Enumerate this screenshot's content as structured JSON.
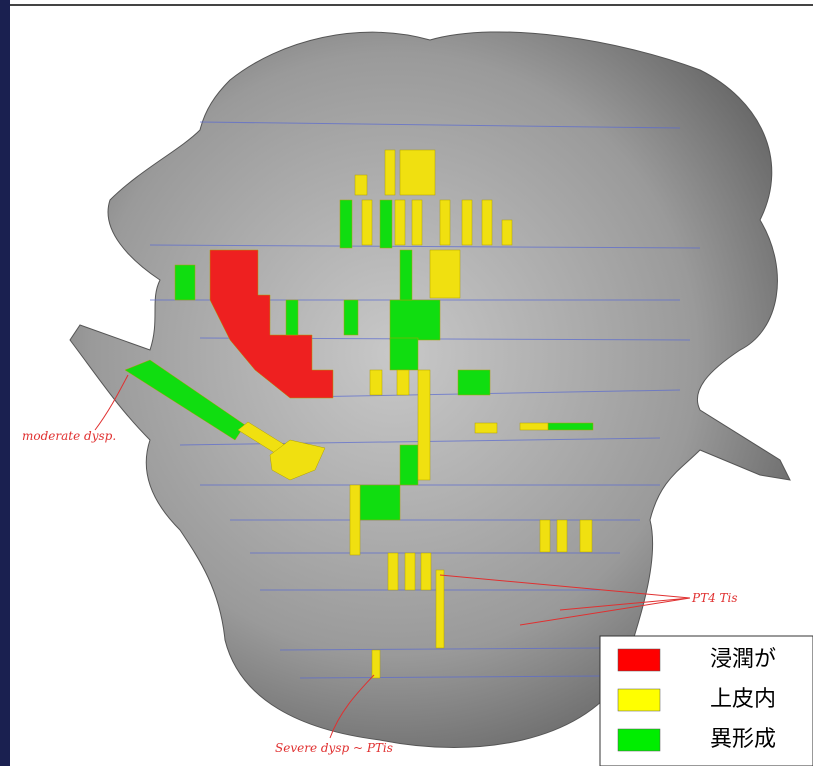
{
  "legend": {
    "items": [
      {
        "label": "浸潤が",
        "color": "#ff0000"
      },
      {
        "label": "上皮内",
        "color": "#ffff00"
      },
      {
        "label": "異形成",
        "color": "#00ee00"
      }
    ]
  },
  "annotations": [
    "moderate dysp.",
    "PT4 Tis",
    "Severe dysp ~ PTis"
  ]
}
